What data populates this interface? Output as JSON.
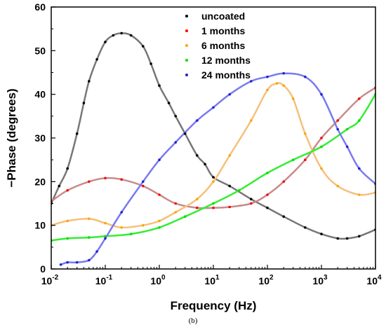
{
  "caption": "(b)",
  "chart_data": {
    "type": "scatter",
    "xlabel": "Frequency (Hz)",
    "ylabel": "−Phase (degrees)",
    "x_scale": "log",
    "xlim": [
      0.01,
      10000
    ],
    "ylim": [
      0,
      60
    ],
    "x_ticks": [
      {
        "base": "10",
        "exp": "-2"
      },
      {
        "base": "10",
        "exp": "-1"
      },
      {
        "base": "10",
        "exp": "0"
      },
      {
        "base": "10",
        "exp": "1"
      },
      {
        "base": "10",
        "exp": "2"
      },
      {
        "base": "10",
        "exp": "3"
      },
      {
        "base": "10",
        "exp": "4"
      }
    ],
    "y_ticks": [
      "0",
      "10",
      "20",
      "30",
      "40",
      "50",
      "60"
    ],
    "grid": false,
    "legend_position": "top-center",
    "series": [
      {
        "name": "uncoated",
        "color": "#000000",
        "fit_color": "#777777",
        "points": [
          [
            0.01,
            15
          ],
          [
            0.014,
            19
          ],
          [
            0.02,
            23
          ],
          [
            0.03,
            31
          ],
          [
            0.04,
            38
          ],
          [
            0.05,
            43
          ],
          [
            0.07,
            48
          ],
          [
            0.1,
            52
          ],
          [
            0.14,
            53.5
          ],
          [
            0.2,
            54
          ],
          [
            0.3,
            53.5
          ],
          [
            0.5,
            51
          ],
          [
            0.7,
            47
          ],
          [
            1,
            42
          ],
          [
            1.5,
            38
          ],
          [
            2,
            35
          ],
          [
            3,
            31
          ],
          [
            5,
            26
          ],
          [
            7,
            24
          ],
          [
            10,
            21
          ],
          [
            20,
            19
          ],
          [
            50,
            16
          ],
          [
            100,
            14
          ],
          [
            200,
            12
          ],
          [
            500,
            9.5
          ],
          [
            1000,
            8
          ],
          [
            2000,
            7
          ],
          [
            3000,
            7
          ],
          [
            5000,
            7.5
          ],
          [
            10000,
            9
          ]
        ]
      },
      {
        "name": "1 months",
        "color": "#ff0000",
        "fit_color": "#c98a8a",
        "points": [
          [
            0.01,
            15.5
          ],
          [
            0.02,
            18
          ],
          [
            0.05,
            20
          ],
          [
            0.1,
            20.8
          ],
          [
            0.2,
            20.5
          ],
          [
            0.5,
            19
          ],
          [
            1,
            17
          ],
          [
            2,
            15
          ],
          [
            5,
            14
          ],
          [
            10,
            14
          ],
          [
            20,
            14.2
          ],
          [
            50,
            15
          ],
          [
            100,
            17
          ],
          [
            200,
            20
          ],
          [
            500,
            25
          ],
          [
            1000,
            30
          ],
          [
            2000,
            34
          ],
          [
            5000,
            39
          ],
          [
            10000,
            41.5
          ]
        ]
      },
      {
        "name": "6 months",
        "color": "#ffa500",
        "fit_color": "#f5c07a",
        "points": [
          [
            0.01,
            10
          ],
          [
            0.02,
            11
          ],
          [
            0.05,
            11.5
          ],
          [
            0.1,
            10.5
          ],
          [
            0.2,
            9.5
          ],
          [
            0.5,
            10
          ],
          [
            1,
            11
          ],
          [
            2,
            13
          ],
          [
            5,
            16
          ],
          [
            10,
            20
          ],
          [
            20,
            26
          ],
          [
            50,
            34
          ],
          [
            100,
            41
          ],
          [
            150,
            42.5
          ],
          [
            200,
            42
          ],
          [
            300,
            39
          ],
          [
            500,
            31
          ],
          [
            1000,
            23
          ],
          [
            2000,
            19
          ],
          [
            5000,
            17
          ],
          [
            10000,
            17.5
          ]
        ]
      },
      {
        "name": "12 months",
        "color": "#00e000",
        "fit_color": "#33ee33",
        "points": [
          [
            0.01,
            6.5
          ],
          [
            0.02,
            7
          ],
          [
            0.05,
            7.2
          ],
          [
            0.1,
            7.5
          ],
          [
            0.3,
            8
          ],
          [
            1,
            9.5
          ],
          [
            3,
            12
          ],
          [
            10,
            15
          ],
          [
            30,
            18
          ],
          [
            100,
            22
          ],
          [
            300,
            25
          ],
          [
            1000,
            28
          ],
          [
            3000,
            32
          ],
          [
            5000,
            34
          ],
          [
            10000,
            40
          ]
        ]
      },
      {
        "name": "24 months",
        "color": "#2020dd",
        "fit_color": "#7a7aee",
        "points": [
          [
            0.015,
            1
          ],
          [
            0.02,
            1.5
          ],
          [
            0.03,
            1.5
          ],
          [
            0.05,
            2
          ],
          [
            0.07,
            4
          ],
          [
            0.1,
            7
          ],
          [
            0.2,
            13
          ],
          [
            0.5,
            20
          ],
          [
            1,
            25
          ],
          [
            2,
            29
          ],
          [
            5,
            34
          ],
          [
            10,
            37
          ],
          [
            20,
            40
          ],
          [
            50,
            43
          ],
          [
            100,
            44
          ],
          [
            200,
            44.8
          ],
          [
            500,
            44
          ],
          [
            1000,
            40
          ],
          [
            2000,
            32
          ],
          [
            3000,
            28
          ],
          [
            5000,
            23
          ],
          [
            10000,
            19.5
          ]
        ]
      }
    ]
  }
}
